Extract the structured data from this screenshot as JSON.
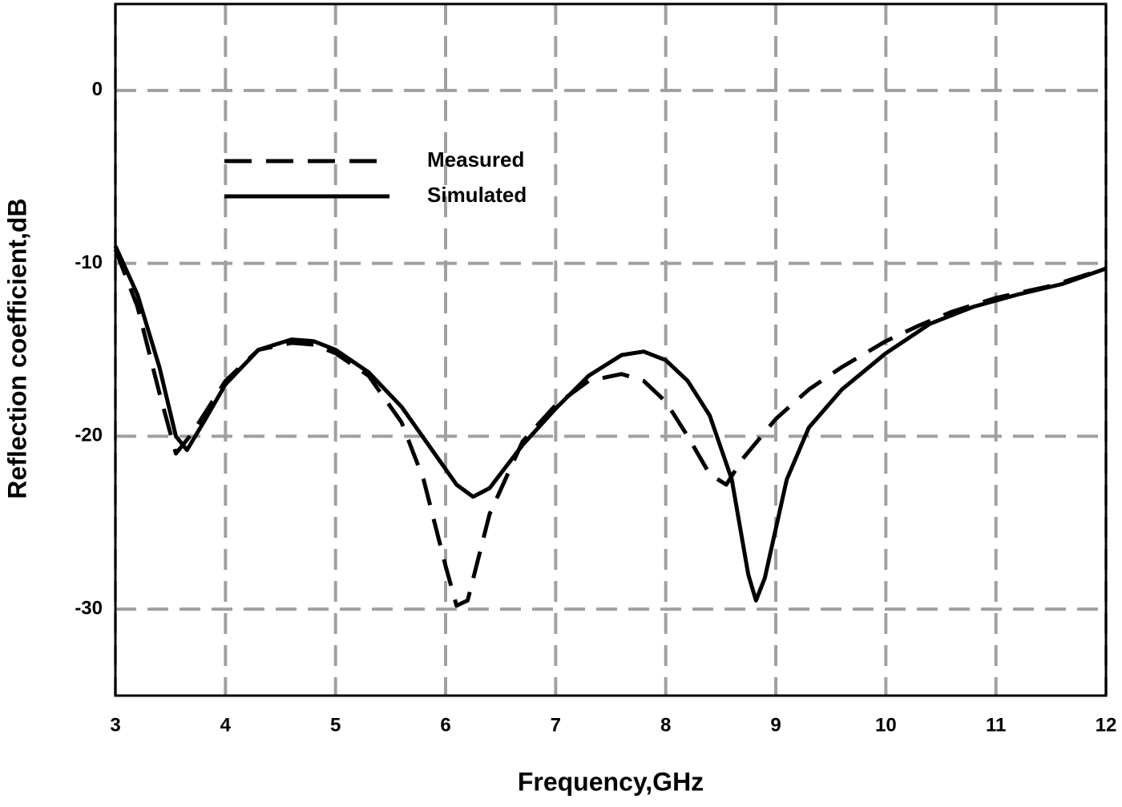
{
  "chart_data": {
    "type": "line",
    "xlabel": "Frequency,GHz",
    "ylabel": "Reflection coefficient,dB",
    "xlim": [
      3,
      12
    ],
    "ylim": [
      -35,
      5
    ],
    "xticks": [
      3,
      4,
      5,
      6,
      7,
      8,
      9,
      10,
      11,
      12
    ],
    "yticks": [
      0,
      -10,
      -20,
      -30
    ],
    "grid": true,
    "legend": "upper left",
    "series": [
      {
        "name": "Measured",
        "color": "#000000",
        "linestyle": "dashed",
        "x": [
          3.0,
          3.2,
          3.4,
          3.55,
          3.7,
          4.0,
          4.3,
          4.6,
          4.8,
          5.0,
          5.3,
          5.6,
          5.8,
          6.0,
          6.1,
          6.2,
          6.4,
          6.7,
          7.0,
          7.3,
          7.6,
          7.8,
          8.0,
          8.2,
          8.4,
          8.55,
          8.7,
          9.0,
          9.3,
          9.6,
          10.0,
          10.3,
          10.6,
          11.0,
          11.5,
          12.0
        ],
        "values": [
          -9.2,
          -12.5,
          -17.5,
          -21,
          -19.8,
          -16.8,
          -15,
          -14.6,
          -14.7,
          -15.2,
          -16.5,
          -19.2,
          -22.5,
          -27.5,
          -29.8,
          -29.5,
          -24.5,
          -20.3,
          -18.2,
          -16.8,
          -16.4,
          -16.8,
          -18,
          -20,
          -22.2,
          -22.8,
          -21.3,
          -19,
          -17.3,
          -16,
          -14.5,
          -13.6,
          -12.8,
          -12,
          -11.3,
          -10.3
        ]
      },
      {
        "name": "Simulated",
        "color": "#000000",
        "linestyle": "solid",
        "x": [
          3.0,
          3.2,
          3.4,
          3.55,
          3.65,
          3.8,
          4.0,
          4.3,
          4.6,
          4.8,
          5.0,
          5.3,
          5.6,
          5.9,
          6.1,
          6.25,
          6.4,
          6.7,
          7.0,
          7.3,
          7.6,
          7.8,
          8.0,
          8.2,
          8.4,
          8.6,
          8.75,
          8.82,
          8.9,
          9.1,
          9.3,
          9.6,
          10.0,
          10.4,
          10.8,
          11.2,
          11.6,
          12.0
        ],
        "values": [
          -9.0,
          -11.8,
          -16,
          -20,
          -20.8,
          -19.2,
          -17,
          -15,
          -14.4,
          -14.5,
          -15,
          -16.3,
          -18.3,
          -21,
          -22.8,
          -23.5,
          -23,
          -20.5,
          -18.4,
          -16.5,
          -15.3,
          -15.1,
          -15.6,
          -16.8,
          -18.8,
          -22.5,
          -28,
          -29.5,
          -28.2,
          -22.5,
          -19.5,
          -17.3,
          -15.2,
          -13.5,
          -12.5,
          -11.8,
          -11.2,
          -10.3
        ]
      }
    ]
  }
}
